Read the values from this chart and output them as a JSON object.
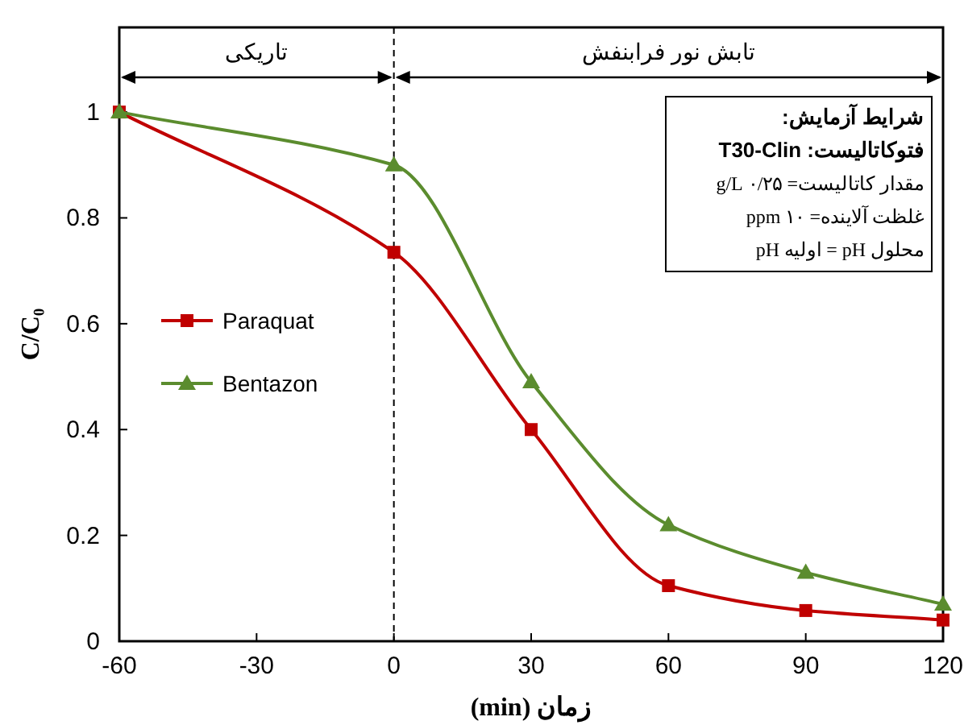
{
  "chart_data": {
    "type": "line",
    "xlabel": "زمان (min)",
    "ylabel": "C/C₀",
    "xlim": [
      -60,
      120
    ],
    "xticks": [
      -60,
      -30,
      0,
      30,
      60,
      90,
      120
    ],
    "ylim": [
      0,
      1.16
    ],
    "yticks": [
      0,
      0.2,
      0.4,
      0.6,
      0.8,
      1
    ],
    "x": [
      -60,
      0,
      30,
      60,
      90,
      120
    ],
    "series": [
      {
        "name": "Paraquat",
        "color": "#c00000",
        "marker": "square",
        "values": [
          1,
          0.735,
          0.4,
          0.105,
          0.058,
          0.04
        ]
      },
      {
        "name": "Bentazon",
        "color": "#5b8c2e",
        "marker": "triangle",
        "values": [
          1,
          0.9,
          0.49,
          0.22,
          0.13,
          0.07
        ]
      }
    ],
    "legend": "left",
    "grid": false,
    "ref_lines": [
      {
        "axis": "x",
        "value": 0,
        "line_style": "dashed",
        "color": "#000000"
      }
    ],
    "annotations": [
      "تاریکی",
      "تابش نور فرابنفش",
      "شرایط آزمایش:",
      "فتوکاتالیست: T30-Clin",
      "مقدار کاتالیست= ۰/۲۵ g/L",
      "غلظت آلاینده= ۱۰ ppm",
      "pH اولیه = pH محلول"
    ]
  }
}
